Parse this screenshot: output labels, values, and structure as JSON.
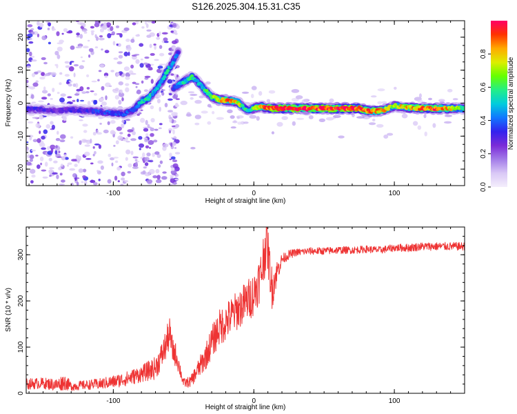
{
  "title": "S126.2025.304.15.31.C35",
  "colors": {
    "snr_line": "#ee3333",
    "frame": "#000000",
    "colormap": [
      "#f4eefc",
      "#d9c8f6",
      "#a27be8",
      "#7a2bd8",
      "#3322ee",
      "#1177ff",
      "#00ccdd",
      "#22ee88",
      "#66ff00",
      "#ddee00",
      "#ffaa00",
      "#ff3300",
      "#ff0066"
    ]
  },
  "chart_data": [
    {
      "type": "heatmap",
      "name": "spectrogram",
      "title": "S126.2025.304.15.31.C35",
      "xlabel": "Height of straight line (km)",
      "ylabel": "Frequency (Hz)",
      "xlim": [
        -162,
        150
      ],
      "ylim": [
        -25,
        25
      ],
      "xticks": [
        -100,
        0,
        100
      ],
      "xtick_labels": [
        "-100",
        "0",
        "100"
      ],
      "yticks": [
        -20,
        -10,
        0,
        10,
        20
      ],
      "ytick_labels": [
        "-20",
        "-10",
        "0",
        "10",
        "20"
      ],
      "colorbar": {
        "label": "Normalized spectral amplitude",
        "range": [
          0,
          1
        ],
        "ticks": [
          0.0,
          0.2,
          0.4,
          0.6,
          0.8
        ],
        "tick_labels": [
          "0.0",
          "0.2",
          "0.4",
          "0.6",
          "0.8"
        ]
      },
      "ridge_segments": [
        {
          "points": [
            [
              -162,
              -1.8
            ],
            [
              -150,
              -2.0
            ],
            [
              -140,
              -2.3
            ],
            [
              -130,
              -2.0
            ],
            [
              -120,
              -2.2
            ],
            [
              -110,
              -2.6
            ],
            [
              -100,
              -3.0
            ],
            [
              -92,
              -3.2
            ],
            [
              -85,
              -2.0
            ],
            [
              -80,
              0.5
            ],
            [
              -75,
              1.5
            ],
            [
              -70,
              4.0
            ],
            [
              -65,
              7.0
            ],
            [
              -62,
              9.5
            ],
            [
              -58,
              12.0
            ],
            [
              -54,
              15.5
            ]
          ],
          "amplitude": [
            0.3,
            0.3,
            0.25,
            0.3,
            0.3,
            0.35,
            0.35,
            0.35,
            0.4,
            0.5,
            0.6,
            0.45,
            0.5,
            0.55,
            0.45,
            0.35
          ]
        },
        {
          "points": [
            [
              -57,
              4.5
            ],
            [
              -50,
              6.5
            ],
            [
              -44,
              8.0
            ],
            [
              -40,
              6.5
            ],
            [
              -35,
              4.0
            ],
            [
              -30,
              2.0
            ],
            [
              -25,
              1.0
            ],
            [
              -18,
              0.8
            ],
            [
              -12,
              0.5
            ],
            [
              -8,
              -1.0
            ],
            [
              -4,
              -2.2
            ],
            [
              0,
              -1.5
            ],
            [
              5,
              -1.0
            ],
            [
              10,
              -1.5
            ],
            [
              20,
              -1.6
            ],
            [
              40,
              -1.6
            ],
            [
              60,
              -1.6
            ],
            [
              75,
              -1.6
            ],
            [
              80,
              -2.3
            ],
            [
              85,
              -2.4
            ],
            [
              92,
              -2.2
            ],
            [
              100,
              -0.8
            ],
            [
              105,
              -1.2
            ],
            [
              115,
              -1.5
            ],
            [
              130,
              -1.6
            ],
            [
              150,
              -1.6
            ]
          ],
          "amplitude": [
            0.35,
            0.55,
            0.55,
            0.5,
            0.55,
            0.6,
            0.75,
            0.85,
            0.75,
            0.6,
            0.5,
            0.65,
            0.75,
            0.9,
            0.95,
            0.95,
            0.95,
            0.9,
            0.9,
            0.85,
            0.8,
            0.65,
            0.75,
            0.85,
            0.9,
            0.6
          ]
        }
      ],
      "background_noise": {
        "description_region": "scattered weak energy at heights below -60 km and near -58 km",
        "amplitude": [
          0.05,
          0.35
        ]
      }
    },
    {
      "type": "line",
      "name": "snr",
      "xlabel": "Height of straight line (km)",
      "ylabel": "SNR (10 * v/v)",
      "xlim": [
        -162,
        150
      ],
      "ylim": [
        0,
        360
      ],
      "xticks": [
        -100,
        0,
        100
      ],
      "xtick_labels": [
        "-100",
        "0",
        "100"
      ],
      "yticks": [
        0,
        100,
        200,
        300
      ],
      "ytick_labels": [
        "0",
        "100",
        "200",
        "300"
      ],
      "series": [
        {
          "name": "SNR",
          "x": [
            -162,
            -150,
            -140,
            -135,
            -130,
            -120,
            -110,
            -100,
            -90,
            -80,
            -70,
            -65,
            -62,
            -60,
            -58,
            -55,
            -52,
            -50,
            -45,
            -40,
            -35,
            -30,
            -25,
            -20,
            -15,
            -10,
            -5,
            0,
            3,
            5,
            7,
            9,
            11,
            13,
            15,
            18,
            20,
            25,
            30,
            40,
            50,
            60,
            70,
            80,
            90,
            100,
            110,
            120,
            130,
            140,
            150
          ],
          "y": [
            20,
            22,
            18,
            25,
            15,
            18,
            20,
            25,
            32,
            42,
            55,
            85,
            110,
            130,
            95,
            80,
            45,
            22,
            25,
            50,
            75,
            110,
            140,
            155,
            170,
            185,
            200,
            215,
            240,
            255,
            295,
            335,
            280,
            225,
            250,
            275,
            290,
            300,
            305,
            308,
            308,
            310,
            310,
            312,
            310,
            315,
            315,
            318,
            318,
            318,
            318
          ],
          "noise_amplitude": [
            12,
            12,
            14,
            18,
            10,
            10,
            12,
            14,
            16,
            18,
            25,
            30,
            35,
            35,
            30,
            25,
            15,
            10,
            12,
            20,
            28,
            35,
            40,
            42,
            42,
            44,
            45,
            48,
            50,
            55,
            60,
            55,
            50,
            45,
            35,
            20,
            12,
            10,
            8,
            8,
            8,
            8,
            8,
            8,
            8,
            8,
            9,
            9,
            9,
            9,
            9
          ]
        }
      ]
    }
  ]
}
